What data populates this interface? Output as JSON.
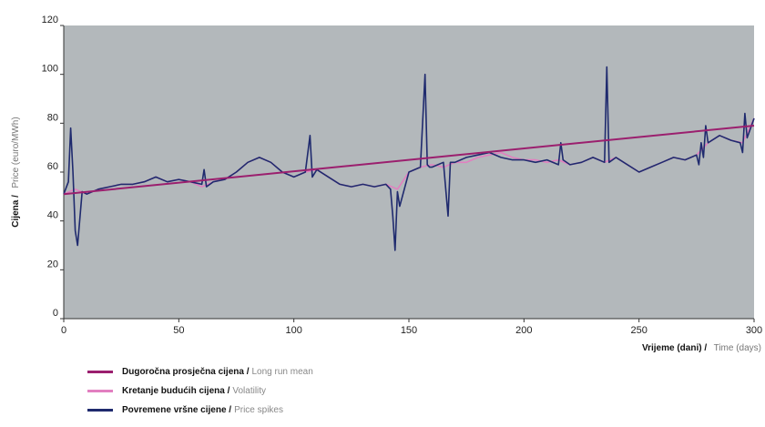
{
  "chart_data": {
    "type": "line",
    "ylabel_main": "Cijena /",
    "ylabel_sub": "Price (euro/MWh)",
    "xlabel_main": "Vrijeme (dani) /",
    "xlabel_sub": "Time (days)",
    "xlim": [
      0,
      300
    ],
    "ylim": [
      0,
      120
    ],
    "x_ticks": [
      "0",
      "50",
      "100",
      "150",
      "200",
      "250",
      "300"
    ],
    "y_ticks": [
      "0",
      "20",
      "40",
      "60",
      "80",
      "100",
      "120"
    ],
    "plot_background": "#b3b8bb",
    "series": [
      {
        "name_main": "Dugoročna prosječna cijena /",
        "name_sub": "Long run mean",
        "color": "#9b1f6e",
        "x": [
          0,
          300
        ],
        "y": [
          51,
          79
        ]
      },
      {
        "name_main": "Kretanje budućih cijena /",
        "name_sub": "Volatility",
        "color": "#e27fc0",
        "x": [
          0,
          5,
          10,
          15,
          20,
          25,
          30,
          35,
          40,
          45,
          50,
          55,
          60,
          65,
          70,
          75,
          80,
          85,
          90,
          95,
          100,
          105,
          110,
          115,
          120,
          125,
          130,
          135,
          140,
          145,
          150,
          155,
          160,
          165,
          170,
          175,
          180,
          185,
          190,
          195,
          200,
          205,
          210,
          215,
          220,
          225,
          230,
          235,
          240,
          245,
          250,
          255,
          260,
          265,
          270,
          275,
          280,
          285,
          290,
          295,
          300
        ],
        "y": [
          51,
          53,
          51,
          53,
          54,
          55,
          55,
          56,
          58,
          56,
          57,
          56,
          54,
          56,
          57,
          60,
          64,
          66,
          64,
          60,
          58,
          60,
          61,
          58,
          55,
          54,
          55,
          54,
          55,
          53,
          60,
          62,
          63,
          62,
          64,
          64,
          66,
          67,
          68,
          66,
          65,
          65,
          64,
          65,
          63,
          64,
          66,
          64,
          66,
          63,
          60,
          62,
          64,
          66,
          65,
          67,
          72,
          75,
          73,
          72,
          82
        ]
      },
      {
        "name_main": "Povremene vršne cijene /",
        "name_sub": "Price spikes",
        "color": "#1f2a6e",
        "x": [
          0,
          2,
          3,
          4,
          5,
          6,
          8,
          10,
          15,
          20,
          25,
          30,
          35,
          40,
          45,
          50,
          55,
          60,
          61,
          62,
          65,
          70,
          75,
          80,
          85,
          90,
          95,
          100,
          105,
          107,
          108,
          110,
          115,
          120,
          125,
          130,
          135,
          140,
          142,
          143,
          144,
          145,
          146,
          150,
          155,
          157,
          158,
          159,
          160,
          165,
          167,
          168,
          170,
          175,
          180,
          185,
          190,
          195,
          200,
          205,
          210,
          215,
          216,
          217,
          220,
          225,
          230,
          235,
          236,
          237,
          240,
          245,
          250,
          255,
          260,
          265,
          270,
          275,
          276,
          277,
          278,
          279,
          280,
          285,
          290,
          294,
          295,
          296,
          297,
          300
        ],
        "y": [
          51,
          56,
          78,
          60,
          36,
          30,
          52,
          51,
          53,
          54,
          55,
          55,
          56,
          58,
          56,
          57,
          56,
          55,
          61,
          54,
          56,
          57,
          60,
          64,
          66,
          64,
          60,
          58,
          60,
          75,
          58,
          61,
          58,
          55,
          54,
          55,
          54,
          55,
          53,
          42,
          28,
          52,
          46,
          60,
          62,
          100,
          63,
          62,
          62,
          64,
          42,
          64,
          64,
          66,
          67,
          68,
          66,
          65,
          65,
          64,
          65,
          63,
          72,
          65,
          63,
          64,
          66,
          64,
          103,
          64,
          66,
          63,
          60,
          62,
          64,
          66,
          65,
          67,
          63,
          72,
          66,
          79,
          72,
          75,
          73,
          72,
          68,
          84,
          74,
          82
        ]
      }
    ]
  }
}
